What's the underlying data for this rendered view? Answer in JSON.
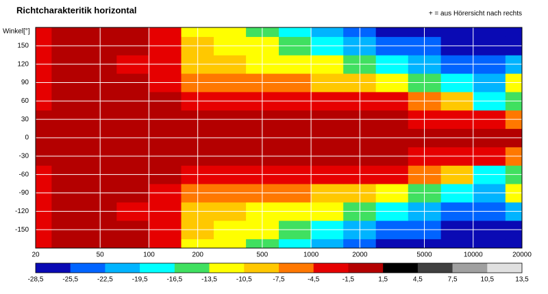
{
  "chart_data": {
    "type": "heatmap",
    "title": "Richtcharakteritik horizontal",
    "annotation": "+ = aus Hörersicht nach rechts",
    "ylabel": "Winkel[°]",
    "xscale": "log",
    "xlim": [
      20,
      20000
    ],
    "xticks": [
      20,
      50,
      100,
      200,
      500,
      1000,
      2000,
      5000,
      10000,
      20000
    ],
    "ylim": [
      -180,
      180
    ],
    "yticks": [
      -150,
      -120,
      -90,
      -60,
      -30,
      0,
      30,
      60,
      90,
      120,
      150
    ],
    "grid": true,
    "x": [
      20,
      31.5,
      50,
      80,
      125,
      200,
      315,
      500,
      800,
      1250,
      2000,
      3150,
      5000,
      8000,
      12500,
      20000
    ],
    "y": [
      -180,
      -150,
      -120,
      -90,
      -60,
      -30,
      0,
      30,
      60,
      90,
      120,
      150,
      180
    ],
    "values": [
      [
        -2.5,
        -1,
        -1,
        -1,
        -4,
        -11,
        -12,
        -14,
        -18,
        -20,
        -23,
        -26,
        -27,
        -27,
        -27,
        -27
      ],
      [
        -2,
        -1,
        -1,
        -1,
        -4,
        -9,
        -12,
        -13,
        -16,
        -18,
        -20,
        -24,
        -25,
        -27,
        -27,
        -26
      ],
      [
        -2,
        -1,
        -1,
        -2,
        -4,
        -8,
        -10,
        -11,
        -12,
        -13,
        -14,
        -17,
        -20,
        -24,
        -25,
        -20
      ],
      [
        -2,
        -1,
        -1,
        -1,
        -3,
        -5,
        -6,
        -7,
        -6,
        -8,
        -9,
        -11,
        -15,
        -19,
        -22,
        -12
      ],
      [
        -2,
        -1,
        -1,
        -1,
        -1.5,
        -2.5,
        -3,
        -3,
        -3,
        -3,
        -3,
        -4,
        -7,
        -10,
        -18,
        -14
      ],
      [
        -1,
        -0.5,
        -0.5,
        -0.5,
        -0.5,
        -1,
        -1,
        -1,
        -1,
        -1,
        -0.5,
        -1,
        -2,
        -3,
        -4,
        -7
      ],
      [
        0,
        0,
        0,
        0,
        0,
        0,
        0,
        0,
        0,
        0,
        0,
        0,
        0,
        0,
        0,
        0
      ],
      [
        -1,
        -0.5,
        -0.5,
        -0.5,
        -0.5,
        -1,
        -1,
        -1,
        -1,
        -1,
        -0.5,
        -1,
        -2,
        -3,
        -4,
        -7
      ],
      [
        -2,
        -1,
        -1,
        -1,
        -1.5,
        -2.5,
        -3,
        -3,
        -3,
        -3,
        -3,
        -4,
        -7,
        -10,
        -18,
        -14
      ],
      [
        -2,
        -1,
        -1,
        -1,
        -3,
        -5,
        -6,
        -7,
        -6,
        -8,
        -9,
        -11,
        -15,
        -19,
        -22,
        -12
      ],
      [
        -2,
        -1,
        -1,
        -2,
        -4,
        -8,
        -10,
        -11,
        -12,
        -13,
        -14,
        -17,
        -20,
        -24,
        -25,
        -20
      ],
      [
        -2,
        -1,
        -1,
        -1,
        -4,
        -9,
        -12,
        -13,
        -16,
        -18,
        -20,
        -24,
        -25,
        -27,
        -27,
        -26
      ],
      [
        -2.5,
        -1,
        -1,
        -1,
        -4,
        -11,
        -12,
        -14,
        -18,
        -20,
        -23,
        -26,
        -27,
        -27,
        -27,
        -27
      ]
    ],
    "colorbar": {
      "ticks": [
        {
          "value": -28.5,
          "label": "-28,5"
        },
        {
          "value": -25.5,
          "label": "-25,5"
        },
        {
          "value": -22.5,
          "label": "-22,5"
        },
        {
          "value": -19.5,
          "label": "-19,5"
        },
        {
          "value": -16.5,
          "label": "-16,5"
        },
        {
          "value": -13.5,
          "label": "-13,5"
        },
        {
          "value": -10.5,
          "label": "-10,5"
        },
        {
          "value": -7.5,
          "label": "-7,5"
        },
        {
          "value": -4.5,
          "label": "-4,5"
        },
        {
          "value": -1.5,
          "label": "-1,5"
        },
        {
          "value": 1.5,
          "label": "1,5"
        },
        {
          "value": 4.5,
          "label": "4,5"
        },
        {
          "value": 7.5,
          "label": "7,5"
        },
        {
          "value": 10.5,
          "label": "10,5"
        },
        {
          "value": 13.5,
          "label": "13,5"
        }
      ],
      "colors": [
        "#0a0ab4",
        "#0064ff",
        "#00b4ff",
        "#00ffff",
        "#40e060",
        "#ffff00",
        "#ffc800",
        "#ff7800",
        "#e60000",
        "#b40000",
        "#000000",
        "#404040",
        "#a0a0a0",
        "#e0e0e0"
      ]
    }
  }
}
